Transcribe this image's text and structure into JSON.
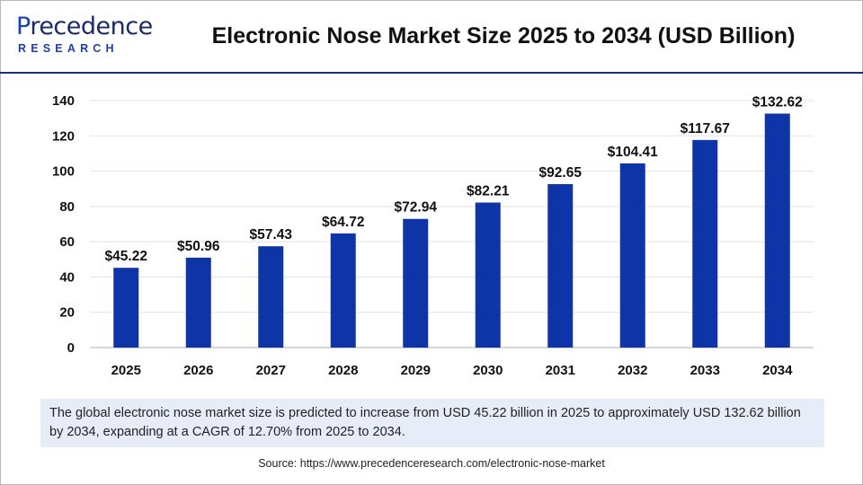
{
  "logo": {
    "line1_prefix": "P",
    "line1_rest": "recedence",
    "line2": "RESEARCH"
  },
  "title": "Electronic Nose Market Size 2025 to 2034 (USD Billion)",
  "note": "The global electronic nose market size is predicted to increase from USD 45.22 billion in 2025 to approximately USD  132.62 billion by 2034, expanding at a CAGR of 12.70% from 2025 to 2034.",
  "source": "Source: https://www.precedenceresearch.com/electronic-nose-market",
  "colors": {
    "bar": "#0e35a8",
    "title": "#111111",
    "note_bg": "#e6edf8",
    "brand": "#1b2a6b"
  },
  "chart_data": {
    "type": "bar",
    "categories": [
      "2025",
      "2026",
      "2027",
      "2028",
      "2029",
      "2030",
      "2031",
      "2032",
      "2033",
      "2034"
    ],
    "values": [
      45.22,
      50.96,
      57.43,
      64.72,
      72.94,
      82.21,
      92.65,
      104.41,
      117.67,
      132.62
    ],
    "value_labels": [
      "$45.22",
      "$50.96",
      "$57.43",
      "$64.72",
      "$72.94",
      "$82.21",
      "$92.65",
      "$104.41",
      "$117.67",
      "$132.62"
    ],
    "y_ticks": [
      "0",
      "20",
      "40",
      "60",
      "80",
      "100",
      "120",
      "140"
    ],
    "ylim": [
      0,
      140
    ],
    "grid": true,
    "xlabel": "",
    "ylabel": ""
  }
}
